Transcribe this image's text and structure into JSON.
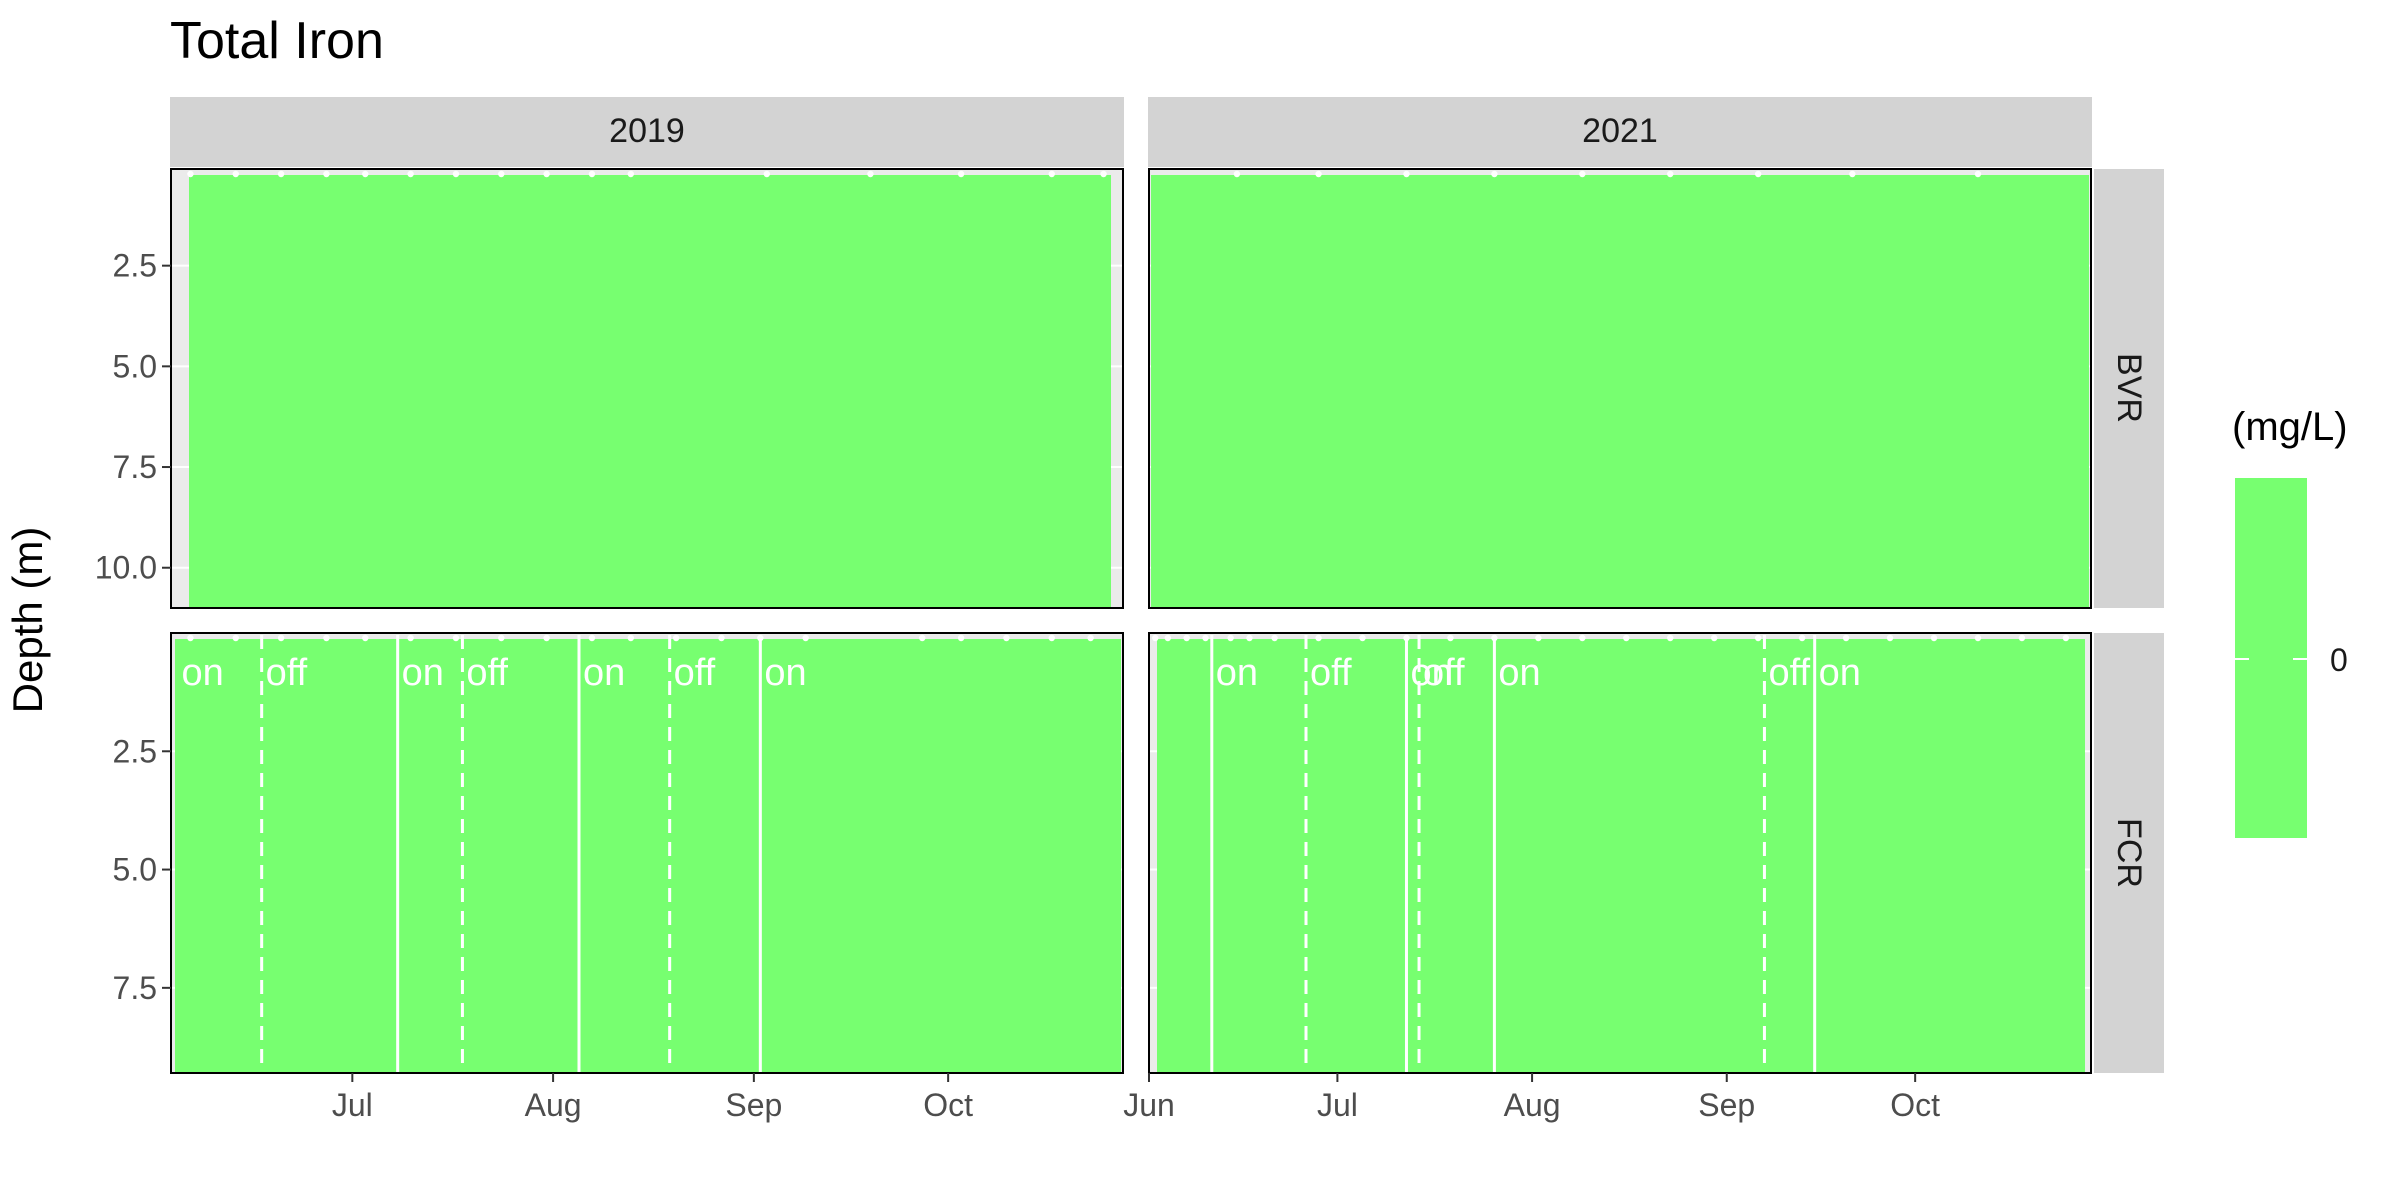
{
  "chart_data": {
    "type": "heatmap",
    "title": "Total Iron",
    "xlabel": "",
    "ylabel": "Depth (m)",
    "legend": {
      "title": "(mg/L)",
      "ticks": [
        "0"
      ],
      "color": "#77ff70",
      "position": "right"
    },
    "colors": {
      "fill": "#77ff70",
      "strip": "#d3d3d3",
      "panel_bg": "#ebebeb",
      "marker": "#ffffff",
      "border": "#000000"
    },
    "facet_cols": [
      "2019",
      "2021"
    ],
    "facet_rows": [
      "BVR",
      "FCR"
    ],
    "x_ticks": [
      {
        "label": "Jul",
        "date": "07-01"
      },
      {
        "label": "Aug",
        "date": "08-01"
      },
      {
        "label": "Sep",
        "date": "09-01"
      },
      {
        "label": "Oct",
        "date": "10-01"
      }
    ],
    "x_ticks_2021_extra": [
      {
        "label": "Jun",
        "date": "06-01"
      }
    ],
    "xlim": {
      "2019": [
        "06-03",
        "10-28"
      ],
      "2021": [
        "06-01",
        "10-29"
      ]
    },
    "ylim": {
      "BVR": [
        0.1,
        11.0
      ],
      "FCR": [
        0.0,
        9.3
      ]
    },
    "y_ticks": {
      "BVR": [
        "2.5",
        "5.0",
        "7.5",
        "10.0"
      ],
      "FCR": [
        "2.5",
        "5.0",
        "7.5"
      ]
    },
    "y_tick_values": {
      "BVR": [
        2.5,
        5.0,
        7.5,
        10.0
      ],
      "FCR": [
        2.5,
        5.0,
        7.5
      ]
    },
    "values": "all cells at 0 mg/L",
    "sample_dates": {
      "BVR_2019": [
        "06-06",
        "06-13",
        "06-20",
        "06-27",
        "07-03",
        "07-10",
        "07-17",
        "07-24",
        "07-31",
        "08-07",
        "08-13",
        "09-03",
        "09-19",
        "10-03",
        "10-17",
        "10-25"
      ],
      "BVR_2021": [
        "06-15",
        "06-28",
        "07-12",
        "07-26",
        "08-09",
        "08-23",
        "09-06",
        "09-21",
        "10-11"
      ],
      "FCR_2019": [
        "06-06",
        "06-13",
        "06-20",
        "06-27",
        "07-03",
        "07-10",
        "07-17",
        "07-24",
        "07-31",
        "08-07",
        "08-13",
        "08-20",
        "08-27",
        "09-02",
        "09-09",
        "09-27",
        "10-03",
        "10-10",
        "10-17",
        "10-23"
      ],
      "FCR_2021": [
        "06-02",
        "06-04",
        "06-07",
        "06-10",
        "06-14",
        "06-17",
        "06-21",
        "06-28",
        "07-05",
        "07-12",
        "07-19",
        "07-26",
        "08-02",
        "08-09",
        "08-16",
        "08-23",
        "08-30",
        "09-06",
        "09-13",
        "09-20",
        "09-27",
        "10-04",
        "10-11",
        "10-18",
        "10-25"
      ]
    },
    "events": {
      "FCR_2019": [
        {
          "date": "06-04",
          "label": "on",
          "line": "none"
        },
        {
          "date": "06-17",
          "label": "off",
          "line": "dashed"
        },
        {
          "date": "07-08",
          "label": "on",
          "line": "solid"
        },
        {
          "date": "07-18",
          "label": "off",
          "line": "dashed"
        },
        {
          "date": "08-05",
          "label": "on",
          "line": "solid"
        },
        {
          "date": "08-19",
          "label": "off",
          "line": "dashed"
        },
        {
          "date": "09-02",
          "label": "on",
          "line": "solid"
        }
      ],
      "FCR_2021": [
        {
          "date": "06-11",
          "label": "on",
          "line": "solid"
        },
        {
          "date": "06-26",
          "label": "off",
          "line": "dashed"
        },
        {
          "date": "07-12",
          "label": "on",
          "line": "solid"
        },
        {
          "date": "07-14",
          "label": "off",
          "line": "dashed"
        },
        {
          "date": "07-26",
          "label": "on",
          "line": "solid"
        },
        {
          "date": "09-07",
          "label": "off",
          "line": "dashed"
        },
        {
          "date": "09-15",
          "label": "on",
          "line": "solid"
        }
      ]
    }
  }
}
